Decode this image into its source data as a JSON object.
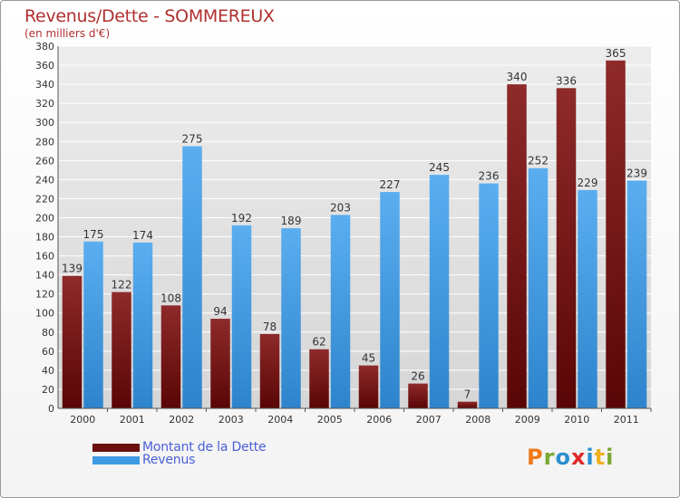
{
  "header": {
    "title": "Revenus/Dette - SOMMEREUX",
    "subtitle": "(en milliers d'€)"
  },
  "legend": {
    "items": [
      {
        "label": "Montant de la Dette",
        "color": "#6b0f0f"
      },
      {
        "label": "Revenus",
        "color": "#3d9be2"
      }
    ]
  },
  "logo": {
    "letters": [
      "P",
      "r",
      "o",
      "x",
      "i",
      "t",
      "i"
    ],
    "colors": [
      "#f07a1a",
      "#7aa832",
      "#2a8fd0",
      "#e02828",
      "#2a8fd0",
      "#f0b020",
      "#7aa832"
    ]
  },
  "chart_data": {
    "type": "bar",
    "title": "Revenus/Dette - SOMMEREUX",
    "subtitle": "(en milliers d'€)",
    "categories": [
      "2000",
      "2001",
      "2002",
      "2003",
      "2004",
      "2005",
      "2006",
      "2007",
      "2008",
      "2009",
      "2010",
      "2011"
    ],
    "series": [
      {
        "name": "Montant de la Dette",
        "color": "#7a1616",
        "values": [
          139,
          122,
          108,
          94,
          78,
          62,
          45,
          26,
          7,
          340,
          336,
          365
        ]
      },
      {
        "name": "Revenus",
        "color": "#3d9be2",
        "values": [
          175,
          174,
          275,
          192,
          189,
          203,
          227,
          245,
          236,
          252,
          229,
          239
        ]
      }
    ],
    "ylim": [
      0,
      380
    ],
    "ytick_step": 20,
    "grid": true,
    "legend_position": "bottom-left"
  }
}
